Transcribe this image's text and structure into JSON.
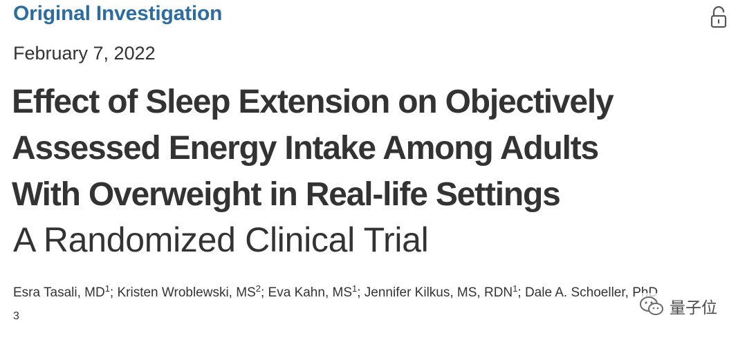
{
  "article": {
    "section_label": "Original Investigation",
    "date": "February 7, 2022",
    "title_lines": [
      "Effect of Sleep Extension on Objectively",
      "Assessed Energy Intake Among Adults",
      "With Overweight in Real-life Settings"
    ],
    "subtitle": "A Randomized Clinical Trial",
    "authors": [
      {
        "name": "Esra Tasali, MD",
        "aff": "1",
        "sep": "; "
      },
      {
        "name": "Kristen Wroblewski, MS",
        "aff": "2",
        "sep": "; "
      },
      {
        "name": "Eva Kahn, MS",
        "aff": "1",
        "sep": "; "
      },
      {
        "name": "Jennifer Kilkus, MS, RDN",
        "aff": "1",
        "sep": "; "
      },
      {
        "name": "Dale A. Schoeller, PhD",
        "aff": "",
        "sep": ""
      }
    ],
    "last_author_aff": "3"
  },
  "icons": {
    "access": "open-lock-icon",
    "watermark_logo": "wechat-icon"
  },
  "watermark": {
    "text": "量子位"
  },
  "colors": {
    "section_label": "#2c6ca0",
    "text": "#333333"
  }
}
